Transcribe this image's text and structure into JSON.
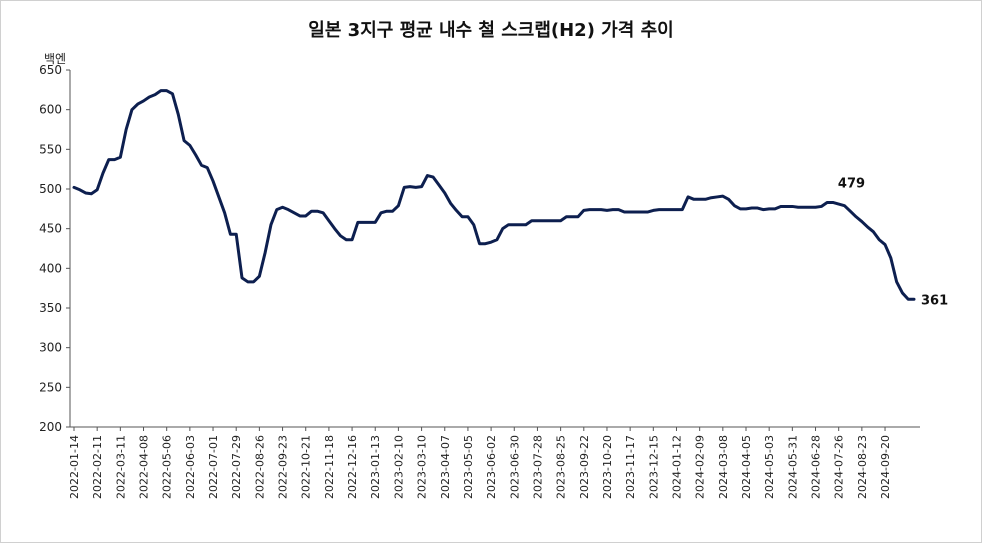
{
  "chart_data": {
    "type": "line",
    "title": "일본 3지구 평균 내수 철 스크랩(H2) 가격 추이",
    "ylabel": "백엔",
    "xlabel": "",
    "ylim": [
      200,
      650
    ],
    "yticks": [
      200,
      250,
      300,
      350,
      400,
      450,
      500,
      550,
      600,
      650
    ],
    "series_color": "#0d1f4f",
    "x_tick_labels": [
      "2022-01-14",
      "2022-02-11",
      "2022-03-11",
      "2022-04-08",
      "2022-05-06",
      "2022-06-03",
      "2022-07-01",
      "2022-07-29",
      "2022-08-26",
      "2022-09-23",
      "2022-10-21",
      "2022-11-18",
      "2022-12-16",
      "2023-01-13",
      "2023-02-10",
      "2023-03-10",
      "2023-04-07",
      "2023-05-05",
      "2023-06-02",
      "2023-06-30",
      "2023-07-28",
      "2023-08-25",
      "2023-09-22",
      "2023-10-20",
      "2023-11-17",
      "2023-12-15",
      "2024-01-12",
      "2024-02-09",
      "2024-03-08",
      "2024-04-05",
      "2024-05-03",
      "2024-05-31",
      "2024-06-28",
      "2024-07-26",
      "2024-08-23",
      "2024-09-20"
    ],
    "series": [
      {
        "values": [
          502,
          499,
          495,
          494,
          499,
          520,
          537,
          537,
          540,
          575,
          600,
          607,
          611,
          616,
          619,
          624,
          624,
          620,
          594,
          561,
          555,
          543,
          530,
          527,
          510,
          490,
          470,
          443,
          443,
          388,
          383,
          383,
          390,
          420,
          455,
          474,
          477,
          474,
          470,
          466,
          466,
          472,
          472,
          470,
          460,
          450,
          441,
          436,
          436,
          458,
          458,
          458,
          458,
          470,
          472,
          472,
          479,
          502,
          503,
          502,
          503,
          517,
          515,
          505,
          495,
          482,
          473,
          465,
          465,
          455,
          431,
          431,
          433,
          436,
          450,
          455,
          455,
          455,
          455,
          460,
          460,
          460,
          460,
          460,
          460,
          465,
          465,
          465,
          473,
          474,
          474,
          474,
          473,
          474,
          474,
          471,
          471,
          471,
          471,
          471,
          473,
          474,
          474,
          474,
          474,
          474,
          490,
          487,
          487,
          487,
          489,
          490,
          491,
          487,
          479,
          475,
          475,
          476,
          476,
          474,
          475,
          475,
          478,
          478,
          478,
          477,
          477,
          477,
          477,
          478,
          483,
          483,
          481,
          479,
          472,
          465,
          459,
          452,
          446,
          436,
          430,
          413,
          383,
          369,
          361,
          361
        ]
      }
    ],
    "annotations": [
      {
        "text": "479",
        "index": 133
      },
      {
        "text": "361",
        "index": 145
      }
    ]
  }
}
